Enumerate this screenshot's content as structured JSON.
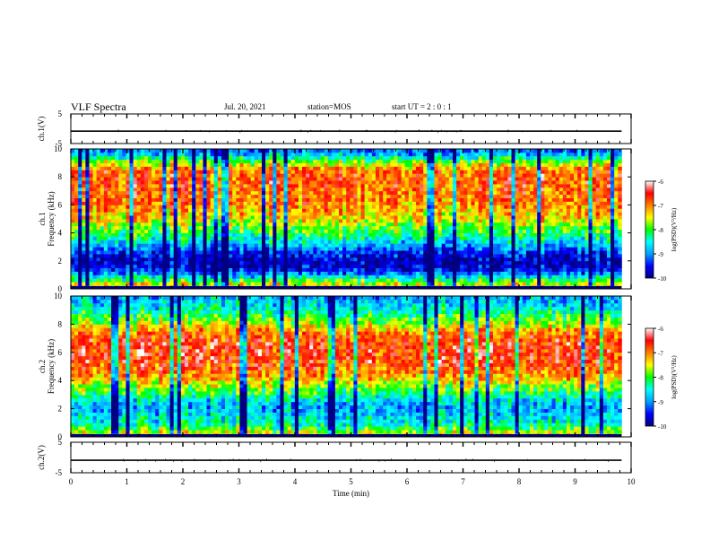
{
  "header": {
    "title": "VLF Spectra",
    "date": "Jul. 20, 2021",
    "station": "station=MOS",
    "start": "start UT =  2 : 0 : 1"
  },
  "chart_data": [
    {
      "type": "line",
      "panel": "ch1-voltage",
      "ylabel": "ch.1(V)",
      "ylim": [
        -5,
        5
      ],
      "y_ticks": [
        "5",
        "-5"
      ],
      "x": [
        0,
        9.83
      ],
      "values": [
        -0.8,
        -0.8
      ]
    },
    {
      "type": "heatmap",
      "panel": "ch1-spectrogram",
      "ylabel_lines": [
        "ch.1",
        "Frequency (kHz)"
      ],
      "ylim": [
        0,
        10
      ],
      "y_ticks": [
        "0",
        "2",
        "4",
        "6",
        "8",
        "10"
      ],
      "xlim": [
        0,
        10
      ],
      "data_end_min": 9.83,
      "profile_freq_khz": [
        0,
        0.4,
        0.8,
        1.2,
        1.6,
        2.0,
        2.5,
        3.0,
        3.5,
        4.0,
        4.5,
        5.0,
        5.5,
        6.0,
        6.5,
        7.0,
        7.5,
        8.0,
        8.5,
        9.0,
        9.3,
        9.6,
        10.0
      ],
      "profile_log_psd": [
        -7.0,
        -7.6,
        -8.4,
        -9.3,
        -9.7,
        -9.8,
        -9.5,
        -9.0,
        -8.5,
        -8.1,
        -7.8,
        -7.4,
        -7.2,
        -7.0,
        -6.9,
        -6.9,
        -6.8,
        -6.8,
        -6.9,
        -7.6,
        -8.2,
        -8.8,
        -9.2
      ],
      "colorbar": {
        "label": "log(PSD)(V²/Hz)",
        "range": [
          -10,
          -6
        ],
        "ticks": [
          "-6",
          "-7",
          "-8",
          "-9",
          "-10"
        ],
        "colors": [
          "#000080",
          "#0000ff",
          "#00a0ff",
          "#00ffff",
          "#00ff00",
          "#ffff00",
          "#ff8000",
          "#ff0000",
          "#ffffff"
        ]
      }
    },
    {
      "type": "heatmap",
      "panel": "ch2-spectrogram",
      "ylabel_lines": [
        "ch.2",
        "Frequency (kHz)"
      ],
      "ylim": [
        0,
        10
      ],
      "y_ticks": [
        "0",
        "2",
        "4",
        "6",
        "8",
        "10"
      ],
      "xlim": [
        0,
        10
      ],
      "data_end_min": 9.83,
      "profile_freq_khz": [
        0,
        0.5,
        1.0,
        1.5,
        2.0,
        2.5,
        3.0,
        3.5,
        4.0,
        4.5,
        5.0,
        5.5,
        6.0,
        6.5,
        7.0,
        7.5,
        8.0,
        8.5,
        9.0,
        9.5,
        10.0
      ],
      "profile_log_psd": [
        -7.2,
        -7.8,
        -8.5,
        -8.6,
        -8.9,
        -8.7,
        -8.2,
        -7.8,
        -7.4,
        -7.0,
        -6.8,
        -6.6,
        -6.6,
        -6.6,
        -6.7,
        -7.0,
        -7.6,
        -8.0,
        -8.4,
        -8.7,
        -8.9
      ],
      "colorbar": {
        "label": "log(PSD)(V²/Hz)",
        "range": [
          -10,
          -6
        ],
        "ticks": [
          "-6",
          "-7",
          "-8",
          "-9",
          "-10"
        ],
        "colors": [
          "#000080",
          "#0000ff",
          "#00a0ff",
          "#00ffff",
          "#00ff00",
          "#ffff00",
          "#ff8000",
          "#ff0000",
          "#ffffff"
        ]
      }
    },
    {
      "type": "line",
      "panel": "ch2-voltage",
      "ylabel": "ch.2(V)",
      "ylim": [
        -5,
        5
      ],
      "y_ticks": [
        "5",
        "-5"
      ],
      "x": [
        0,
        9.83
      ],
      "values": [
        -0.9,
        -0.9
      ]
    }
  ],
  "x_axis": {
    "label": "Time (min)",
    "range": [
      0,
      10
    ],
    "ticks": [
      "0",
      "1",
      "2",
      "3",
      "4",
      "5",
      "6",
      "7",
      "8",
      "9",
      "10"
    ]
  }
}
